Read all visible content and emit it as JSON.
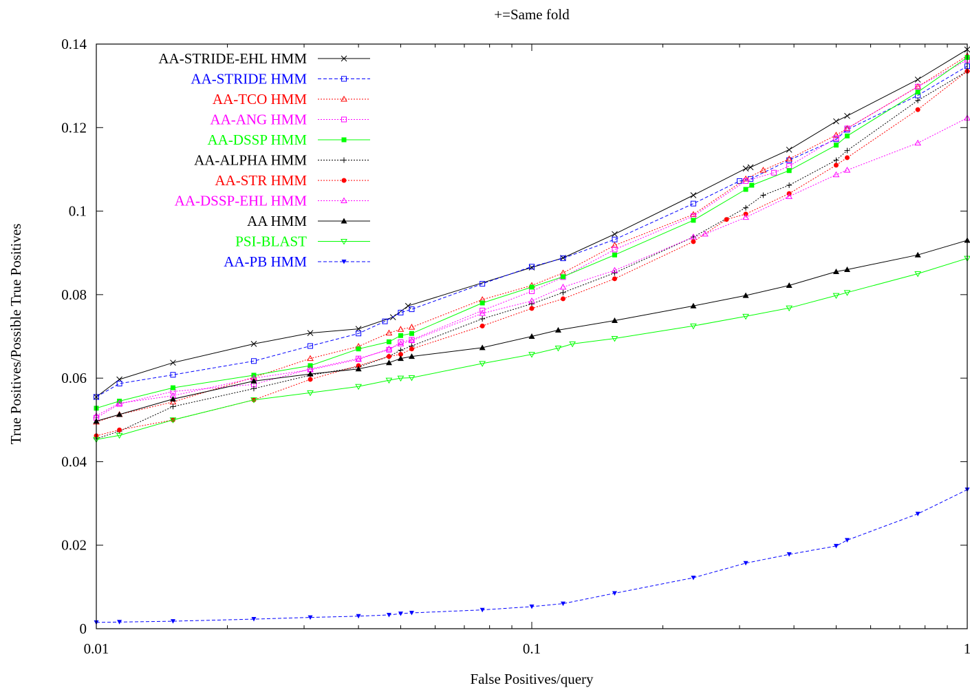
{
  "chart_data": {
    "type": "line",
    "title": "+=Same fold",
    "xlabel": "False Positives/query",
    "ylabel": "True Positives/Possible True Positives",
    "xscale": "log",
    "xlim": [
      0.01,
      1
    ],
    "ylim": [
      0,
      0.14
    ],
    "xticks": [
      0.01,
      0.1,
      1
    ],
    "xtick_labels": [
      "0.01",
      "0.1",
      "1"
    ],
    "yticks": [
      0,
      0.02,
      0.04,
      0.06,
      0.08,
      0.1,
      0.12,
      0.14
    ],
    "ytick_labels": [
      "0",
      "0.02",
      "0.04",
      "0.06",
      "0.08",
      "0.1",
      "0.12",
      "0.14"
    ],
    "grid": false,
    "legend_position": "top-left",
    "series": [
      {
        "name": "AA-STRIDE-EHL HMM",
        "color": "#000000",
        "dash": "solid",
        "marker": "x",
        "label_color": "#000000",
        "x": [
          0.01,
          0.0113,
          0.015,
          0.023,
          0.031,
          0.04,
          0.048,
          0.052,
          0.1,
          0.118,
          0.155,
          0.235,
          0.31,
          0.318,
          0.39,
          0.5,
          0.53,
          0.77,
          1.0
        ],
        "y": [
          0.0555,
          0.0597,
          0.0637,
          0.0682,
          0.0708,
          0.0718,
          0.0746,
          0.0773,
          0.0865,
          0.0888,
          0.0945,
          0.1038,
          0.1102,
          0.1105,
          0.1147,
          0.1215,
          0.1228,
          0.1315,
          0.1387
        ]
      },
      {
        "name": "AA-STRIDE HMM",
        "color": "#0000ff",
        "dash": "dashed",
        "marker": "square-open",
        "label_color": "#0000ff",
        "x": [
          0.01,
          0.0113,
          0.015,
          0.023,
          0.031,
          0.04,
          0.046,
          0.05,
          0.053,
          0.077,
          0.1,
          0.118,
          0.155,
          0.235,
          0.3,
          0.318,
          0.39,
          0.5,
          0.53,
          0.77,
          1.0
        ],
        "y": [
          0.0555,
          0.0587,
          0.0608,
          0.0641,
          0.0677,
          0.0707,
          0.0736,
          0.0757,
          0.0765,
          0.0826,
          0.0867,
          0.0887,
          0.0932,
          0.1018,
          0.1072,
          0.1077,
          0.1122,
          0.1172,
          0.1195,
          0.1277,
          0.1347
        ]
      },
      {
        "name": "AA-TCO HMM",
        "color": "#ff0000",
        "dash": "dotted",
        "marker": "triangle-open",
        "label_color": "#ff0000",
        "x": [
          0.01,
          0.0113,
          0.015,
          0.023,
          0.031,
          0.04,
          0.047,
          0.05,
          0.053,
          0.077,
          0.1,
          0.118,
          0.155,
          0.235,
          0.31,
          0.34,
          0.39,
          0.5,
          0.53,
          0.77,
          1.0
        ],
        "y": [
          0.0495,
          0.0513,
          0.0543,
          0.0602,
          0.0647,
          0.0676,
          0.0708,
          0.0717,
          0.0722,
          0.0788,
          0.0822,
          0.0852,
          0.0918,
          0.0992,
          0.1077,
          0.1098,
          0.1125,
          0.1182,
          0.1198,
          0.1298,
          0.1372
        ]
      },
      {
        "name": "AA-ANG HMM",
        "color": "#ff00ff",
        "dash": "dotted",
        "marker": "square-open",
        "label_color": "#ff00ff",
        "x": [
          0.01,
          0.0113,
          0.015,
          0.023,
          0.031,
          0.04,
          0.047,
          0.05,
          0.053,
          0.077,
          0.1,
          0.118,
          0.155,
          0.235,
          0.31,
          0.36,
          0.39,
          0.5,
          0.53,
          0.77,
          1.0
        ],
        "y": [
          0.0505,
          0.0538,
          0.0568,
          0.0585,
          0.0622,
          0.0647,
          0.0668,
          0.0686,
          0.0692,
          0.0762,
          0.0808,
          0.0842,
          0.0908,
          0.0988,
          0.1072,
          0.1092,
          0.1108,
          0.1175,
          0.1198,
          0.1298,
          0.1362
        ]
      },
      {
        "name": "AA-DSSP HMM",
        "color": "#00ff00",
        "dash": "solid",
        "marker": "square-filled",
        "label_color": "#00ff00",
        "x": [
          0.01,
          0.0113,
          0.015,
          0.023,
          0.031,
          0.04,
          0.047,
          0.05,
          0.053,
          0.077,
          0.1,
          0.118,
          0.155,
          0.235,
          0.31,
          0.32,
          0.39,
          0.5,
          0.53,
          0.77,
          1.0
        ],
        "y": [
          0.0528,
          0.0545,
          0.0577,
          0.0607,
          0.063,
          0.067,
          0.0687,
          0.0702,
          0.0707,
          0.078,
          0.0818,
          0.0843,
          0.0895,
          0.0978,
          0.1052,
          0.1062,
          0.1097,
          0.1158,
          0.118,
          0.1285,
          0.1368
        ]
      },
      {
        "name": "AA-ALPHA HMM",
        "color": "#000000",
        "dash": "dotted",
        "marker": "plus",
        "label_color": "#000000",
        "x": [
          0.01,
          0.0113,
          0.015,
          0.023,
          0.031,
          0.04,
          0.047,
          0.05,
          0.053,
          0.077,
          0.1,
          0.118,
          0.155,
          0.235,
          0.31,
          0.34,
          0.39,
          0.5,
          0.53,
          0.77,
          1.0
        ],
        "y": [
          0.0455,
          0.0473,
          0.0532,
          0.0575,
          0.0607,
          0.0627,
          0.0652,
          0.0667,
          0.0677,
          0.0742,
          0.0778,
          0.0805,
          0.0852,
          0.0938,
          0.1008,
          0.1038,
          0.1062,
          0.1122,
          0.1145,
          0.1265,
          0.1335
        ]
      },
      {
        "name": "AA-STR HMM",
        "color": "#ff0000",
        "dash": "dotted",
        "marker": "circle-filled",
        "label_color": "#ff0000",
        "x": [
          0.01,
          0.0113,
          0.015,
          0.023,
          0.031,
          0.04,
          0.047,
          0.05,
          0.053,
          0.077,
          0.1,
          0.118,
          0.155,
          0.235,
          0.28,
          0.31,
          0.39,
          0.5,
          0.53,
          0.77,
          1.0
        ],
        "y": [
          0.0462,
          0.0476,
          0.05,
          0.0548,
          0.0597,
          0.063,
          0.0652,
          0.0657,
          0.067,
          0.0725,
          0.0767,
          0.079,
          0.0838,
          0.0927,
          0.098,
          0.0993,
          0.1042,
          0.111,
          0.1128,
          0.1243,
          0.1335
        ]
      },
      {
        "name": "AA-DSSP-EHL HMM",
        "color": "#ff00ff",
        "dash": "dotted",
        "marker": "triangle-open",
        "label_color": "#ff00ff",
        "x": [
          0.01,
          0.0113,
          0.015,
          0.023,
          0.031,
          0.04,
          0.047,
          0.05,
          0.053,
          0.077,
          0.1,
          0.118,
          0.155,
          0.235,
          0.25,
          0.31,
          0.39,
          0.5,
          0.53,
          0.77,
          1.0
        ],
        "y": [
          0.051,
          0.054,
          0.0558,
          0.06,
          0.062,
          0.0645,
          0.067,
          0.0682,
          0.069,
          0.0755,
          0.0785,
          0.0818,
          0.0858,
          0.0938,
          0.0945,
          0.0985,
          0.1035,
          0.1087,
          0.1098,
          0.1163,
          0.1223
        ]
      },
      {
        "name": "AA HMM",
        "color": "#000000",
        "dash": "solid",
        "marker": "triangle-filled",
        "label_color": "#000000",
        "x": [
          0.01,
          0.0113,
          0.015,
          0.023,
          0.031,
          0.04,
          0.047,
          0.05,
          0.053,
          0.077,
          0.1,
          0.115,
          0.155,
          0.235,
          0.31,
          0.39,
          0.5,
          0.53,
          0.77,
          1.0
        ],
        "y": [
          0.0497,
          0.0513,
          0.055,
          0.0593,
          0.061,
          0.0622,
          0.0637,
          0.0647,
          0.0652,
          0.0673,
          0.07,
          0.0715,
          0.0738,
          0.0773,
          0.0798,
          0.0822,
          0.0855,
          0.086,
          0.0895,
          0.093
        ]
      },
      {
        "name": "PSI-BLAST",
        "color": "#00ff00",
        "dash": "solid",
        "marker": "triangle-down-open",
        "label_color": "#00ff00",
        "x": [
          0.01,
          0.0113,
          0.015,
          0.023,
          0.031,
          0.04,
          0.047,
          0.05,
          0.053,
          0.077,
          0.1,
          0.115,
          0.124,
          0.155,
          0.235,
          0.31,
          0.39,
          0.5,
          0.53,
          0.77,
          1.0
        ],
        "y": [
          0.0453,
          0.0463,
          0.05,
          0.0548,
          0.0565,
          0.058,
          0.0595,
          0.06,
          0.0601,
          0.0635,
          0.0657,
          0.0672,
          0.0682,
          0.0695,
          0.0725,
          0.0748,
          0.0768,
          0.0798,
          0.0805,
          0.085,
          0.0887
        ]
      },
      {
        "name": "AA-PB HMM",
        "color": "#0000ff",
        "dash": "dashed",
        "marker": "triangle-down-filled",
        "label_color": "#0000ff",
        "x": [
          0.01,
          0.0113,
          0.015,
          0.023,
          0.031,
          0.04,
          0.047,
          0.05,
          0.053,
          0.077,
          0.1,
          0.118,
          0.155,
          0.235,
          0.31,
          0.39,
          0.5,
          0.53,
          0.77,
          1.0
        ],
        "y": [
          0.0015,
          0.0016,
          0.0018,
          0.0023,
          0.0027,
          0.003,
          0.0033,
          0.0036,
          0.0038,
          0.0045,
          0.0053,
          0.006,
          0.0085,
          0.0122,
          0.0157,
          0.0178,
          0.0198,
          0.0212,
          0.0275,
          0.0333
        ]
      }
    ]
  }
}
